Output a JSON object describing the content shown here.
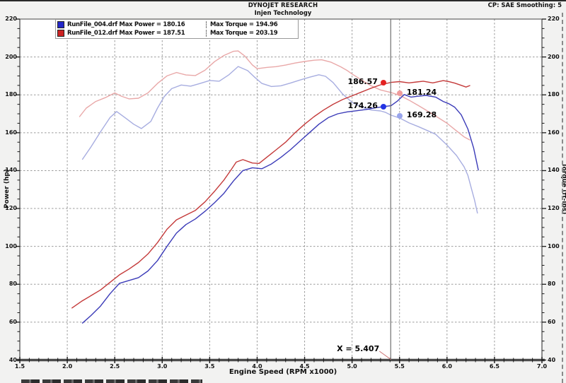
{
  "header": {
    "title": "DYNOJET RESEARCH",
    "subtitle": "Injen Technology",
    "correction": "CP: SAE  Smoothing: 5"
  },
  "legend": {
    "rows": [
      {
        "file": "RunFile_004.drf",
        "power": "Max Power = 180.16",
        "torque": "Max Torque = 194.96",
        "color": "#2327c8"
      },
      {
        "file": "RunFile_012.drf",
        "power": "Max Power = 187.51",
        "torque": "Max Torque = 203.19",
        "color": "#cc2222"
      }
    ]
  },
  "chart_data": {
    "type": "line",
    "title": "DYNOJET RESEARCH",
    "subtitle": "Injen Technology",
    "xlabel": "Engine Speed (RPM x1000)",
    "ylabel_left": "Power (hp)",
    "ylabel_right": "Torque (ft-lbs)",
    "xlim": [
      1.5,
      7.0
    ],
    "ylim": [
      40,
      220
    ],
    "x_ticks": [
      "1.5",
      "2.0",
      "2.5",
      "3.0",
      "3.5",
      "4.0",
      "4.5",
      "5.0",
      "5.5",
      "6.0",
      "6.5",
      "7.0"
    ],
    "y_ticks": [
      "220",
      "200",
      "180",
      "160",
      "140",
      "120",
      "100",
      "80",
      "60",
      "40"
    ],
    "x_minor_step": 0.1,
    "y_minor_step": 5,
    "grid": {
      "x_step": 0.5,
      "y_step": 20,
      "color": "#9b9b9b",
      "style": "dashed",
      "on": true
    },
    "legend_position": "top-left",
    "series": [
      {
        "name": "RunFile_012 Torque",
        "unit": "ft-lbs",
        "color": "#e9a8a8",
        "max": 203.19,
        "points": [
          [
            2.13,
            168.5
          ],
          [
            2.2,
            173
          ],
          [
            2.3,
            176.5
          ],
          [
            2.4,
            178.5
          ],
          [
            2.5,
            181
          ],
          [
            2.57,
            179.3
          ],
          [
            2.65,
            177.9
          ],
          [
            2.75,
            178.2
          ],
          [
            2.85,
            181
          ],
          [
            2.95,
            186
          ],
          [
            3.05,
            190
          ],
          [
            3.15,
            191.8
          ],
          [
            3.25,
            190.5
          ],
          [
            3.35,
            190.2
          ],
          [
            3.45,
            193
          ],
          [
            3.55,
            197.5
          ],
          [
            3.65,
            200.8
          ],
          [
            3.75,
            203
          ],
          [
            3.8,
            203.19
          ],
          [
            3.87,
            200.5
          ],
          [
            3.95,
            195.8
          ],
          [
            4.0,
            193.8
          ],
          [
            4.1,
            194.5
          ],
          [
            4.2,
            194.9
          ],
          [
            4.3,
            195.7
          ],
          [
            4.4,
            196.8
          ],
          [
            4.5,
            197.6
          ],
          [
            4.6,
            198.3
          ],
          [
            4.68,
            198.5
          ],
          [
            4.78,
            197.2
          ],
          [
            4.88,
            194.8
          ],
          [
            4.95,
            192.8
          ],
          [
            5.0,
            191
          ],
          [
            5.1,
            187.8
          ],
          [
            5.2,
            184.8
          ],
          [
            5.3,
            182.6
          ],
          [
            5.41,
            181.24
          ],
          [
            5.5,
            179.8
          ],
          [
            5.6,
            177.2
          ],
          [
            5.7,
            174.3
          ],
          [
            5.8,
            171.3
          ],
          [
            5.9,
            168.2
          ],
          [
            6.0,
            165
          ],
          [
            6.1,
            161
          ],
          [
            6.18,
            157.8
          ],
          [
            6.24,
            156.2
          ]
        ]
      },
      {
        "name": "RunFile_004 Torque",
        "unit": "ft-lbs",
        "color": "#a7ade0",
        "max": 194.96,
        "points": [
          [
            2.16,
            146
          ],
          [
            2.25,
            152.5
          ],
          [
            2.35,
            160.5
          ],
          [
            2.45,
            168
          ],
          [
            2.52,
            171.2
          ],
          [
            2.62,
            167.5
          ],
          [
            2.7,
            164.5
          ],
          [
            2.78,
            162.2
          ],
          [
            2.88,
            166
          ],
          [
            2.95,
            173
          ],
          [
            3.02,
            179
          ],
          [
            3.1,
            183.3
          ],
          [
            3.2,
            185.2
          ],
          [
            3.3,
            184.6
          ],
          [
            3.4,
            186
          ],
          [
            3.5,
            187.6
          ],
          [
            3.6,
            187.2
          ],
          [
            3.7,
            190.5
          ],
          [
            3.8,
            194.96
          ],
          [
            3.9,
            192.8
          ],
          [
            3.97,
            189.5
          ],
          [
            4.05,
            186
          ],
          [
            4.15,
            184.4
          ],
          [
            4.25,
            184.8
          ],
          [
            4.35,
            186.2
          ],
          [
            4.45,
            187.8
          ],
          [
            4.55,
            189.3
          ],
          [
            4.65,
            190.6
          ],
          [
            4.72,
            189.8
          ],
          [
            4.8,
            186.5
          ],
          [
            4.9,
            180.5
          ],
          [
            5.0,
            176
          ],
          [
            5.1,
            173.5
          ],
          [
            5.2,
            172
          ],
          [
            5.3,
            171.5
          ],
          [
            5.35,
            170.8
          ],
          [
            5.41,
            169.28
          ],
          [
            5.5,
            167.8
          ],
          [
            5.6,
            165.2
          ],
          [
            5.7,
            163.2
          ],
          [
            5.8,
            161
          ],
          [
            5.88,
            159.2
          ],
          [
            6.0,
            153.5
          ],
          [
            6.1,
            148
          ],
          [
            6.18,
            142
          ],
          [
            6.22,
            137.5
          ],
          [
            6.26,
            130
          ],
          [
            6.29,
            124.5
          ],
          [
            6.32,
            117.6
          ]
        ]
      },
      {
        "name": "RunFile_012 Power",
        "unit": "hp",
        "color": "#c43a3a",
        "max": 187.51,
        "points": [
          [
            2.05,
            67.5
          ],
          [
            2.15,
            71
          ],
          [
            2.25,
            74
          ],
          [
            2.35,
            77
          ],
          [
            2.45,
            81
          ],
          [
            2.55,
            85
          ],
          [
            2.65,
            88
          ],
          [
            2.75,
            91.5
          ],
          [
            2.85,
            96
          ],
          [
            2.95,
            102
          ],
          [
            3.05,
            109
          ],
          [
            3.15,
            114
          ],
          [
            3.25,
            116.5
          ],
          [
            3.35,
            119
          ],
          [
            3.45,
            123.5
          ],
          [
            3.55,
            129
          ],
          [
            3.65,
            135
          ],
          [
            3.72,
            140
          ],
          [
            3.78,
            144.5
          ],
          [
            3.85,
            145.8
          ],
          [
            3.95,
            144
          ],
          [
            4.02,
            143.8
          ],
          [
            4.1,
            147
          ],
          [
            4.2,
            151
          ],
          [
            4.3,
            155
          ],
          [
            4.4,
            160
          ],
          [
            4.5,
            164.5
          ],
          [
            4.6,
            168.5
          ],
          [
            4.7,
            172
          ],
          [
            4.8,
            175
          ],
          [
            4.9,
            177.5
          ],
          [
            5.0,
            179.5
          ],
          [
            5.1,
            181.5
          ],
          [
            5.2,
            183.5
          ],
          [
            5.3,
            185.3
          ],
          [
            5.41,
            186.57
          ],
          [
            5.5,
            187
          ],
          [
            5.6,
            186.3
          ],
          [
            5.68,
            186.8
          ],
          [
            5.75,
            187.2
          ],
          [
            5.85,
            186.3
          ],
          [
            5.96,
            187.51
          ],
          [
            6.02,
            187
          ],
          [
            6.08,
            186.2
          ],
          [
            6.14,
            185.2
          ],
          [
            6.2,
            184.1
          ],
          [
            6.24,
            184.9
          ]
        ]
      },
      {
        "name": "RunFile_004 Power",
        "unit": "hp",
        "color": "#3b3bb8",
        "max": 180.16,
        "points": [
          [
            2.16,
            59.5
          ],
          [
            2.25,
            63.5
          ],
          [
            2.35,
            68.5
          ],
          [
            2.45,
            75
          ],
          [
            2.55,
            80.5
          ],
          [
            2.65,
            82
          ],
          [
            2.75,
            83.5
          ],
          [
            2.85,
            87
          ],
          [
            2.95,
            92.5
          ],
          [
            3.05,
            100
          ],
          [
            3.15,
            107
          ],
          [
            3.25,
            111.5
          ],
          [
            3.35,
            114.5
          ],
          [
            3.45,
            118.5
          ],
          [
            3.55,
            123
          ],
          [
            3.65,
            128
          ],
          [
            3.75,
            134.5
          ],
          [
            3.85,
            140
          ],
          [
            3.95,
            141.5
          ],
          [
            4.05,
            141
          ],
          [
            4.15,
            143.5
          ],
          [
            4.25,
            147
          ],
          [
            4.35,
            151
          ],
          [
            4.45,
            155.5
          ],
          [
            4.55,
            160
          ],
          [
            4.65,
            164.5
          ],
          [
            4.75,
            168
          ],
          [
            4.85,
            170
          ],
          [
            4.95,
            171
          ],
          [
            5.05,
            171.6
          ],
          [
            5.15,
            172.3
          ],
          [
            5.25,
            173.2
          ],
          [
            5.35,
            173.9
          ],
          [
            5.41,
            174.26
          ],
          [
            5.48,
            176.8
          ],
          [
            5.55,
            180.16
          ],
          [
            5.62,
            178.8
          ],
          [
            5.7,
            179.3
          ],
          [
            5.78,
            179.7
          ],
          [
            5.88,
            178.8
          ],
          [
            5.96,
            176.5
          ],
          [
            6.02,
            175.3
          ],
          [
            6.08,
            173.5
          ],
          [
            6.15,
            169.5
          ],
          [
            6.22,
            162
          ],
          [
            6.28,
            152
          ],
          [
            6.33,
            140.3
          ]
        ]
      }
    ],
    "cursor": {
      "x": 5.407,
      "label": "X = 5.407"
    },
    "readouts": [
      {
        "label": "186.57",
        "series": "RunFile_012 Power",
        "dot": {
          "rpm": 5.33,
          "value": 186.4
        },
        "side": "left",
        "color": "#e42222"
      },
      {
        "label": "181.24",
        "series": "RunFile_012 Torque",
        "dot": {
          "rpm": 5.5,
          "value": 180.9
        },
        "side": "right",
        "color": "#f09c9c"
      },
      {
        "label": "174.26",
        "series": "RunFile_004 Power",
        "dot": {
          "rpm": 5.33,
          "value": 173.7
        },
        "side": "left",
        "color": "#2334e4"
      },
      {
        "label": "169.28",
        "series": "RunFile_004 Torque",
        "dot": {
          "rpm": 5.5,
          "value": 169.0
        },
        "side": "right",
        "color": "#98a4ec"
      }
    ]
  }
}
